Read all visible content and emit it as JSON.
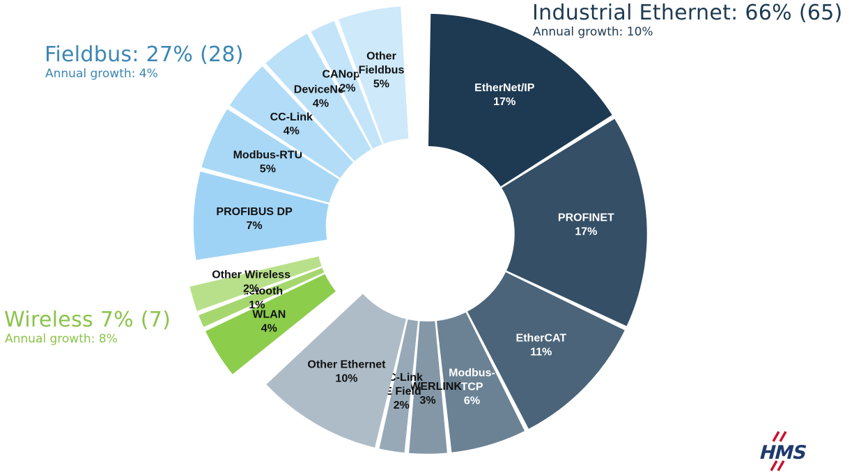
{
  "chart_data": {
    "type": "pie",
    "variant": "donut",
    "groups": [
      {
        "title": "Industrial Ethernet: 66% (65)",
        "growth": "Annual growth: 10%",
        "color": "#1e3a52",
        "slices": [
          {
            "name": "EtherNet/IP",
            "value": 17,
            "label": "17%",
            "color": "#1e3a52",
            "text_color": "#ffffff"
          },
          {
            "name": "PROFINET",
            "value": 17,
            "label": "17%",
            "color": "#344f66",
            "text_color": "#ffffff"
          },
          {
            "name": "EtherCAT",
            "value": 11,
            "label": "11%",
            "color": "#4b6479",
            "text_color": "#ffffff"
          },
          {
            "name": "Modbus-TCP",
            "value": 6,
            "label": "6%",
            "color": "#6b8294",
            "text_color": "#ffffff"
          },
          {
            "name": "POWERLINK",
            "value": 3,
            "label": "3%",
            "color": "#8397a7",
            "text_color": "#111111"
          },
          {
            "name": "CC-Link IE Field",
            "value": 2,
            "label": "2%",
            "color": "#97a9b7",
            "text_color": "#111111"
          },
          {
            "name": "Other Ethernet",
            "value": 10,
            "label": "10%",
            "color": "#aebcc7",
            "text_color": "#111111"
          }
        ]
      },
      {
        "title": "Wireless 7% (7)",
        "growth": "Annual growth: 8%",
        "color": "#8bc34a",
        "slices": [
          {
            "name": "WLAN",
            "value": 4,
            "label": "4%",
            "color": "#8dcd4c",
            "text_color": "#111111"
          },
          {
            "name": "Bluetooth",
            "value": 1,
            "label": "1%",
            "color": "#a6d76f",
            "text_color": "#111111"
          },
          {
            "name": "Other Wireless",
            "value": 2,
            "label": "2%",
            "color": "#b8e08a",
            "text_color": "#111111"
          }
        ]
      },
      {
        "title": "Fieldbus: 27% (28)",
        "growth": "Annual growth: 4%",
        "color": "#3b86b4",
        "slices": [
          {
            "name": "PROFIBUS DP",
            "value": 7,
            "label": "7%",
            "color": "#9fd3f5",
            "text_color": "#111111"
          },
          {
            "name": "Modbus-RTU",
            "value": 5,
            "label": "5%",
            "color": "#a8d8f6",
            "text_color": "#111111"
          },
          {
            "name": "CC-Link",
            "value": 4,
            "label": "4%",
            "color": "#b2dcf7",
            "text_color": "#111111"
          },
          {
            "name": "DeviceNet",
            "value": 4,
            "label": "4%",
            "color": "#bbe1f8",
            "text_color": "#111111"
          },
          {
            "name": "CANopen",
            "value": 2,
            "label": "2%",
            "color": "#c3e4f9",
            "text_color": "#111111"
          },
          {
            "name": "Other Fieldbus",
            "value": 5,
            "label": "5%",
            "color": "#cde9fa",
            "text_color": "#111111"
          }
        ]
      }
    ]
  },
  "logo": {
    "text": "HMS",
    "color": "#1e3a6e",
    "accent": "#c8102e"
  }
}
